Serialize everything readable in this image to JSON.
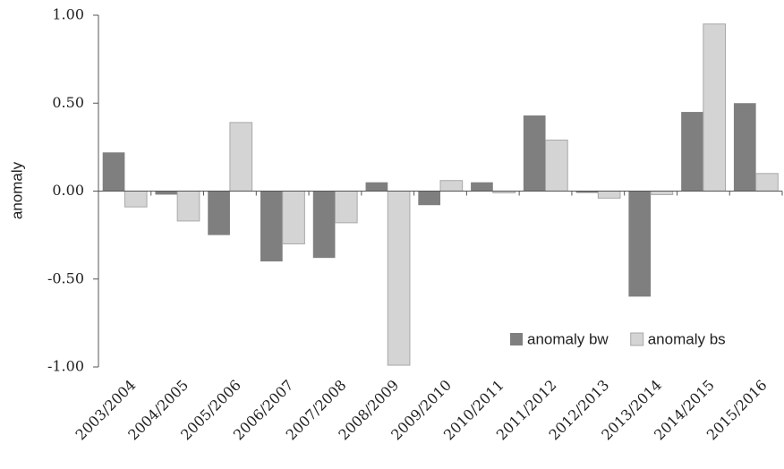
{
  "chart_data": {
    "type": "bar",
    "y_label": "anomaly",
    "categories": [
      "2003/2004",
      "2004/2005",
      "2005/2006",
      "2006/2007",
      "2007/2008",
      "2008/2009",
      "2009/2010",
      "2010/2011",
      "2011/2012",
      "2012/2013",
      "2013/2014",
      "2014/2015",
      "2015/2016"
    ],
    "series": [
      {
        "name": "anomaly bw",
        "color": "#7f7f7f",
        "values": [
          0.22,
          -0.02,
          -0.25,
          -0.4,
          -0.38,
          0.05,
          -0.08,
          0.05,
          0.43,
          -0.01,
          -0.6,
          0.45,
          0.5
        ]
      },
      {
        "name": "anomaly bs",
        "color": "#d4d4d4",
        "values": [
          -0.09,
          -0.17,
          0.39,
          -0.3,
          -0.18,
          -0.99,
          0.06,
          -0.01,
          0.29,
          -0.04,
          -0.02,
          0.95,
          0.1
        ]
      }
    ],
    "ylim": [
      -1,
      1
    ],
    "yticks": [
      {
        "value": -1,
        "label": "-1.00"
      },
      {
        "value": -0.5,
        "label": "-0.50"
      },
      {
        "value": 0,
        "label": "0.00"
      },
      {
        "value": 0.5,
        "label": "0.50"
      },
      {
        "value": 1,
        "label": "1.00"
      }
    ],
    "legend": "lower right"
  }
}
